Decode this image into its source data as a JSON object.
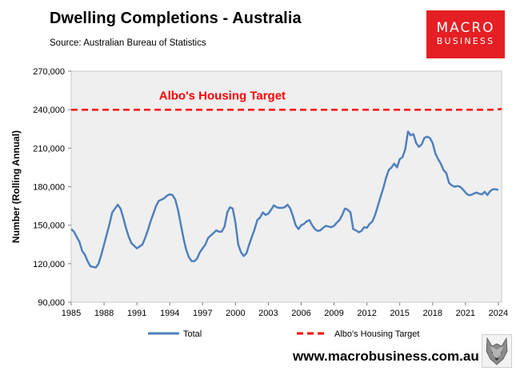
{
  "header": {
    "title": "Dwelling Completions - Australia",
    "source": "Source: Australian Bureau of Statistics"
  },
  "logo": {
    "line1": "MACRO",
    "line2": "BUSINESS",
    "color": "#e51f23"
  },
  "footer": {
    "url": "www.macrobusiness.com.au",
    "icon": "wolf-icon"
  },
  "chart_data": {
    "type": "line",
    "title": "Dwelling Completions - Australia",
    "xlabel": "",
    "ylabel": "Number (Rolling Annual)",
    "xlim": [
      1985,
      2024.3
    ],
    "ylim": [
      90000,
      270000
    ],
    "x_ticks": [
      "1985",
      "1988",
      "1991",
      "1994",
      "1997",
      "2000",
      "2003",
      "2006",
      "2009",
      "2012",
      "2015",
      "2018",
      "2021",
      "2024"
    ],
    "y_ticks": [
      "90,000",
      "120,000",
      "150,000",
      "180,000",
      "210,000",
      "240,000",
      "270,000"
    ],
    "grid": false,
    "plot_background": "#efefef",
    "legend_position": "bottom",
    "annotations": [
      {
        "text": "Albo's Housing Target",
        "x": 1998.8,
        "y": 251000,
        "color": "#ff0000"
      }
    ],
    "series": [
      {
        "name": "Total",
        "color": "#4f81bd",
        "style": "solid",
        "x": [
          1985.0,
          1985.25,
          1985.5,
          1985.75,
          1986.0,
          1986.25,
          1986.5,
          1986.75,
          1987.0,
          1987.25,
          1987.5,
          1987.75,
          1988.0,
          1988.25,
          1988.5,
          1988.75,
          1989.0,
          1989.25,
          1989.5,
          1989.75,
          1990.0,
          1990.25,
          1990.5,
          1990.75,
          1991.0,
          1991.25,
          1991.5,
          1991.75,
          1992.0,
          1992.25,
          1992.5,
          1992.75,
          1993.0,
          1993.25,
          1993.5,
          1993.75,
          1994.0,
          1994.25,
          1994.5,
          1994.75,
          1995.0,
          1995.25,
          1995.5,
          1995.75,
          1996.0,
          1996.25,
          1996.5,
          1996.75,
          1997.0,
          1997.25,
          1997.5,
          1997.75,
          1998.0,
          1998.25,
          1998.5,
          1998.75,
          1999.0,
          1999.25,
          1999.5,
          1999.75,
          2000.0,
          2000.25,
          2000.5,
          2000.75,
          2001.0,
          2001.25,
          2001.5,
          2001.75,
          2002.0,
          2002.25,
          2002.5,
          2002.75,
          2003.0,
          2003.25,
          2003.5,
          2003.75,
          2004.0,
          2004.25,
          2004.5,
          2004.75,
          2005.0,
          2005.25,
          2005.5,
          2005.75,
          2006.0,
          2006.25,
          2006.5,
          2006.75,
          2007.0,
          2007.25,
          2007.5,
          2007.75,
          2008.0,
          2008.25,
          2008.5,
          2008.75,
          2009.0,
          2009.25,
          2009.5,
          2009.75,
          2010.0,
          2010.25,
          2010.5,
          2010.75,
          2011.0,
          2011.25,
          2011.5,
          2011.75,
          2012.0,
          2012.25,
          2012.5,
          2012.75,
          2013.0,
          2013.25,
          2013.5,
          2013.75,
          2014.0,
          2014.25,
          2014.5,
          2014.75,
          2015.0,
          2015.25,
          2015.5,
          2015.75,
          2016.0,
          2016.25,
          2016.5,
          2016.75,
          2017.0,
          2017.25,
          2017.5,
          2017.75,
          2018.0,
          2018.25,
          2018.5,
          2018.75,
          2019.0,
          2019.25,
          2019.5,
          2019.75,
          2020.0,
          2020.25,
          2020.5,
          2020.75,
          2021.0,
          2021.25,
          2021.5,
          2021.75,
          2022.0,
          2022.25,
          2022.5,
          2022.75,
          2023.0,
          2023.25,
          2023.5,
          2023.75,
          2024.0
        ],
        "values": [
          147000,
          145000,
          141000,
          137000,
          130000,
          127000,
          122000,
          118000,
          117500,
          117000,
          120000,
          127000,
          135000,
          143000,
          151000,
          160000,
          163000,
          166000,
          163000,
          156000,
          148000,
          141000,
          136000,
          134000,
          132000,
          133500,
          135000,
          140000,
          146000,
          153000,
          159000,
          165000,
          169000,
          170000,
          171000,
          173000,
          174000,
          173500,
          170000,
          162000,
          151000,
          140000,
          131000,
          125000,
          122000,
          122000,
          124000,
          129000,
          132000,
          135000,
          140000,
          142000,
          144000,
          146000,
          145000,
          145000,
          149000,
          160000,
          164000,
          163000,
          152000,
          135000,
          129000,
          126000,
          128000,
          135000,
          141000,
          147000,
          154000,
          156000,
          160000,
          158000,
          159000,
          162000,
          165500,
          164000,
          163500,
          163500,
          164000,
          166000,
          163000,
          157000,
          150000,
          147000,
          150000,
          151000,
          153000,
          154000,
          150000,
          147000,
          145500,
          146000,
          148000,
          149500,
          149000,
          148500,
          149500,
          152000,
          154000,
          158000,
          163000,
          162000,
          160000,
          147000,
          146000,
          144500,
          145500,
          148500,
          148000,
          151000,
          153000,
          158000,
          165000,
          172000,
          179000,
          187000,
          193000,
          195000,
          198000,
          195000,
          201500,
          203000,
          209000,
          223000,
          220000,
          221000,
          214000,
          211000,
          213000,
          218000,
          219000,
          218000,
          214000,
          206000,
          201500,
          198000,
          193000,
          190500,
          183000,
          181000,
          180000,
          180500,
          180000,
          178000,
          175500,
          173500,
          173500,
          174500,
          175500,
          174500,
          174000,
          176000,
          173500,
          176500,
          178000,
          178000,
          177500
        ]
      },
      {
        "name": "Albo's Housing Target",
        "color": "#ff0000",
        "style": "dashed",
        "x": [
          1985.0,
          2023.4,
          2024.3
        ],
        "values": [
          240000,
          240000,
          240500
        ]
      }
    ]
  }
}
